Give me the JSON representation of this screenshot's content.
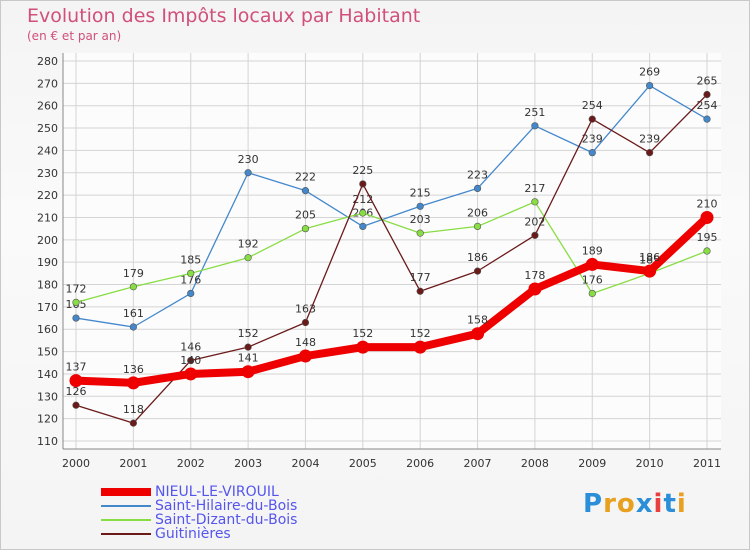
{
  "header": {
    "title": "Evolution des Impôts locaux par Habitant",
    "subtitle": "(en € et par an)"
  },
  "logo": {
    "text": "Proxiti",
    "letter_colors": [
      "#2a8fd8",
      "#e8a020",
      "#e8a020",
      "#2a8fd8",
      "#e84040",
      "#2a8fd8",
      "#e8a020"
    ]
  },
  "chart_data": {
    "type": "line",
    "title": "Evolution des Impôts locaux par Habitant",
    "subtitle": "(en € et par an)",
    "xlabel": "",
    "ylabel": "",
    "x": [
      "2000",
      "2001",
      "2002",
      "2003",
      "2004",
      "2005",
      "2006",
      "2007",
      "2008",
      "2009",
      "2010",
      "2011"
    ],
    "ylim": [
      110,
      280
    ],
    "yticks": [
      110,
      120,
      130,
      140,
      150,
      160,
      170,
      180,
      190,
      200,
      210,
      220,
      230,
      240,
      250,
      260,
      270,
      280
    ],
    "grid": true,
    "legend_position": "bottom-left",
    "series": [
      {
        "name": "NIEUL-LE-VIROUIL",
        "color": "#ee0000",
        "highlight": true,
        "values": [
          137,
          136,
          140,
          141,
          148,
          152,
          152,
          158,
          178,
          189,
          186,
          210
        ]
      },
      {
        "name": "Saint-Hilaire-du-Bois",
        "color": "#4488cc",
        "highlight": false,
        "values": [
          165,
          161,
          176,
          230,
          222,
          206,
          215,
          223,
          251,
          239,
          269,
          254
        ]
      },
      {
        "name": "Saint-Dizant-du-Bois",
        "color": "#88dd44",
        "highlight": false,
        "values": [
          172,
          179,
          185,
          192,
          205,
          212,
          203,
          206,
          217,
          176,
          185,
          195
        ]
      },
      {
        "name": "Guitinières",
        "color": "#6b1a1a",
        "highlight": false,
        "values": [
          126,
          118,
          146,
          152,
          163,
          225,
          177,
          186,
          202,
          254,
          239,
          265
        ]
      }
    ]
  }
}
